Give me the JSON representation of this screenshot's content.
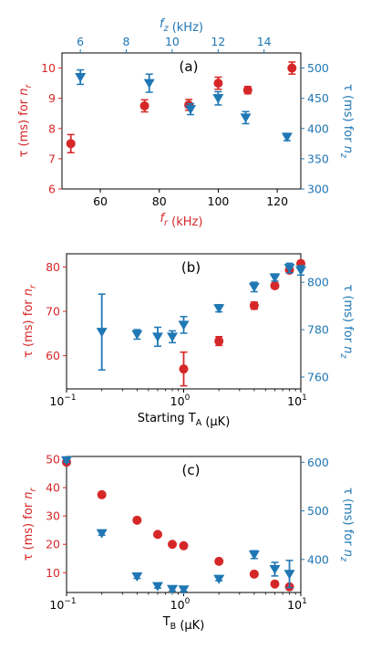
{
  "colors": {
    "red": "#d62728",
    "blue": "#1f77b4",
    "axis": "#000000"
  },
  "chart_data": [
    {
      "type": "scatter",
      "panel_label": "(a)",
      "xlabel": "f_r (kHz)",
      "xlabel_top": "f_z (kHz)",
      "ylabel_left": "τ (ms) for n_r",
      "ylabel_right": "τ (ms) for n_z",
      "xlim": [
        47,
        128
      ],
      "xticks": [
        60,
        80,
        100,
        120
      ],
      "xlim_top": [
        5.2,
        15.6
      ],
      "xticks_top": [
        6,
        8,
        10,
        12,
        14
      ],
      "ylim_left": [
        6,
        10.5
      ],
      "yticks_left": [
        6,
        7,
        8,
        9,
        10
      ],
      "ylim_right": [
        300,
        525
      ],
      "yticks_right": [
        300,
        350,
        400,
        450,
        500
      ],
      "log_x": false,
      "series": [
        {
          "axis": "left",
          "xaxis": "bottom",
          "color": "#d62728",
          "marker": "circle",
          "x": [
            50,
            75,
            90,
            100,
            110,
            125
          ],
          "y": [
            7.5,
            8.75,
            8.78,
            9.5,
            9.27,
            10.0
          ],
          "err": [
            0.3,
            0.2,
            0.18,
            0.2,
            0.12,
            0.2
          ]
        },
        {
          "axis": "right",
          "xaxis": "top",
          "color": "#1f77b4",
          "marker": "triangle-down",
          "x": [
            6.0,
            9.0,
            10.8,
            12.0,
            13.2,
            15.0
          ],
          "y": [
            485,
            475,
            432,
            450,
            418,
            386
          ],
          "err": [
            12,
            15,
            9,
            11,
            10,
            6
          ]
        }
      ]
    },
    {
      "type": "scatter",
      "panel_label": "(b)",
      "xlabel": "Starting T_A (μK)",
      "ylabel_left": "τ (ms) for n_r",
      "ylabel_right": "τ (ms) for n_z",
      "xlim": [
        0.1,
        10
      ],
      "xticks": [
        0.1,
        1,
        10
      ],
      "xtick_labels": [
        "10",
        "10",
        "10"
      ],
      "xtick_exps": [
        "−1",
        "0",
        "1"
      ],
      "ylim_left": [
        52.5,
        83
      ],
      "yticks_left": [
        60,
        70,
        80
      ],
      "ylim_right": [
        755,
        812
      ],
      "yticks_right": [
        760,
        780,
        800
      ],
      "log_x": true,
      "series": [
        {
          "axis": "left",
          "color": "#d62728",
          "marker": "circle",
          "x": [
            1.0,
            2.0,
            4.0,
            6.0,
            8.0,
            10.0
          ],
          "y": [
            57.0,
            63.3,
            71.3,
            75.8,
            79.3,
            80.8
          ],
          "err": [
            3.8,
            1.0,
            0.8,
            0.6,
            0.6,
            0.5
          ]
        },
        {
          "axis": "right",
          "color": "#1f77b4",
          "marker": "triangle-down",
          "x": [
            0.2,
            0.4,
            0.6,
            0.8,
            1.0,
            2.0,
            4.0,
            6.0,
            8.0,
            10.0
          ],
          "y": [
            779,
            778,
            777,
            777,
            782,
            789,
            798,
            802,
            806,
            805
          ],
          "err": [
            16,
            2,
            4,
            2.5,
            3.5,
            1.5,
            2,
            1.5,
            2,
            2
          ]
        }
      ]
    },
    {
      "type": "scatter",
      "panel_label": "(c)",
      "xlabel": "T_B (μK)",
      "ylabel_left": "τ (ms) for n_r",
      "ylabel_right": "τ (ms) for n_z",
      "xlim": [
        0.1,
        10
      ],
      "xticks": [
        0.1,
        1,
        10
      ],
      "xtick_labels": [
        "10",
        "10",
        "10"
      ],
      "xtick_exps": [
        "−1",
        "0",
        "1"
      ],
      "ylim_left": [
        3,
        51
      ],
      "yticks_left": [
        10,
        20,
        30,
        40,
        50
      ],
      "ylim_right": [
        332,
        612
      ],
      "yticks_right": [
        400,
        500,
        600
      ],
      "log_x": true,
      "series": [
        {
          "axis": "left",
          "color": "#d62728",
          "marker": "circle",
          "x": [
            0.1,
            0.2,
            0.4,
            0.6,
            0.8,
            1.0,
            2.0,
            4.0,
            6.0,
            8.0
          ],
          "y": [
            49.0,
            37.5,
            28.5,
            23.5,
            20.0,
            19.5,
            14.0,
            9.5,
            6.0,
            5.0
          ],
          "err": [
            0.5,
            0.5,
            0.5,
            0.5,
            0.5,
            0.5,
            0.5,
            0.5,
            0.5,
            0.5
          ]
        },
        {
          "axis": "right",
          "color": "#1f77b4",
          "marker": "triangle-down",
          "x": [
            0.1,
            0.2,
            0.4,
            0.6,
            0.8,
            1.0,
            2.0,
            4.0,
            6.0,
            8.0
          ],
          "y": [
            604,
            454,
            365,
            345,
            339,
            338,
            360,
            410,
            380,
            370
          ],
          "err": [
            4,
            4,
            4,
            4,
            4,
            4,
            4,
            8,
            14,
            28
          ]
        }
      ]
    }
  ]
}
